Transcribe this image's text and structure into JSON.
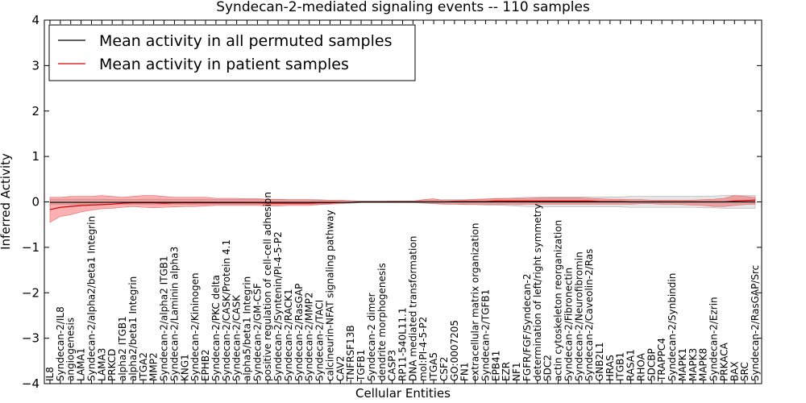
{
  "chart_data": {
    "type": "line",
    "title": "Syndecan-2-mediated signaling events -- 110 samples",
    "xlabel": "Cellular Entities",
    "ylabel": "Inferred Activity",
    "ylim": [
      -4,
      4
    ],
    "yticks": [
      -4,
      -3,
      -2,
      -1,
      0,
      1,
      2,
      3,
      4
    ],
    "legend_position": "top-left",
    "categories": [
      "IL8",
      "Syndecan-2/IL8",
      "angiogenesis",
      "LAMA1",
      "Syndecan-2/alpha2/beta1 Integrin",
      "LAMA3",
      "PRKCD",
      "alpha2 ITGB1",
      "alpha2/beta1 Integrin",
      "ITGA2",
      "MMP2",
      "Syndecan-2/alpha2 ITGB1",
      "Syndecan-2/Laminin alpha3",
      "KNG1",
      "Syndecan-2/Kininogen",
      "EPHB2",
      "Syndecan-2/PKC delta",
      "Syndecan-2/CASK/Protein 4.1",
      "Syndecan-2/CASK",
      "alpha5/beta1 Integrin",
      "Syndecan-2/GM-CSF",
      "positive regulation of cell-cell adhesion",
      "Syndecan-2/Syntenin/PI-4-5-P2",
      "Syndecan-2/RACK1",
      "Syndecan-2/RasGAP",
      "Syndecan-2/MMP2",
      "Syndecan-2/TACI",
      "calcineurin-NFAT signaling pathway",
      "CAV2",
      "TNFRSF13B",
      "TGFB1",
      "Syndecan-2 dimer",
      "dendrite morphogenesis",
      "CASP3",
      "RP11-540L11.1",
      "DNA mediated transformation",
      "mol:PI-4-5-P2",
      "ITGA5",
      "CSF2",
      "GO:0007205",
      "FN1",
      "extracellular matrix organization",
      "Syndecan-2/TGFB1",
      "EPB41",
      "EZR",
      "NF1",
      "FGFR/FGF/Syndecan-2",
      "determination of left/right symmetry",
      "SDC2",
      "actin cytoskeleton reorganization",
      "Syndecan-2/Fibronectin",
      "Syndecan-2/Neurofibromin",
      "Syndecan-2/Caveolin-2/Ras",
      "GNB2L1",
      "HRAS",
      "ITGB1",
      "RASA1",
      "RHOA",
      "SDCBP",
      "TRAPPC4",
      "Syndecan-2/Synbindin",
      "MAPK1",
      "MAPK3",
      "MAPK8",
      "Syndecan-2/Ezrin",
      "PRKACA",
      "BAX",
      "SRC",
      "Syndecan-2/RasGAP/Src"
    ],
    "series": [
      {
        "name": "Mean activity in all permuted samples",
        "color": "#000000",
        "values": [
          -0.01,
          -0.01,
          -0.01,
          -0.01,
          -0.01,
          -0.01,
          -0.01,
          -0.01,
          -0.01,
          -0.01,
          -0.01,
          -0.01,
          -0.01,
          -0.01,
          -0.01,
          -0.01,
          -0.01,
          -0.01,
          -0.01,
          -0.01,
          -0.01,
          -0.01,
          -0.01,
          -0.01,
          -0.01,
          -0.01,
          -0.01,
          -0.01,
          -0.01,
          -0.01,
          0.0,
          0.0,
          0.0,
          0.0,
          0.0,
          0.0,
          0.0,
          0.0,
          0.0,
          0.0,
          0.0,
          0.0,
          0.0,
          0.0,
          0.0,
          0.0,
          0.0,
          0.0,
          0.0,
          0.0,
          0.0,
          0.0,
          0.0,
          0.0,
          0.0,
          0.0,
          0.0,
          0.0,
          0.0,
          0.0,
          0.0,
          0.0,
          0.0,
          0.0,
          0.0,
          0.0,
          0.0,
          0.0,
          0.0
        ],
        "band_low": [
          -0.06,
          -0.06,
          -0.06,
          -0.06,
          -0.06,
          -0.06,
          -0.05,
          -0.05,
          -0.05,
          -0.06,
          -0.06,
          -0.06,
          -0.05,
          -0.05,
          -0.05,
          -0.05,
          -0.05,
          -0.05,
          -0.05,
          -0.05,
          -0.05,
          -0.05,
          -0.05,
          -0.05,
          -0.05,
          -0.05,
          -0.05,
          -0.04,
          -0.04,
          -0.03,
          -0.02,
          -0.02,
          -0.02,
          -0.02,
          -0.02,
          -0.02,
          -0.03,
          -0.04,
          -0.05,
          -0.05,
          -0.05,
          -0.06,
          -0.07,
          -0.07,
          -0.08,
          -0.09,
          -0.1,
          -0.1,
          -0.11,
          -0.11,
          -0.11,
          -0.11,
          -0.11,
          -0.11,
          -0.11,
          -0.11,
          -0.12,
          -0.12,
          -0.12,
          -0.12,
          -0.12,
          -0.12,
          -0.12,
          -0.13,
          -0.13,
          -0.14,
          -0.14,
          -0.14,
          -0.14
        ],
        "band_high": [
          0.06,
          0.06,
          0.06,
          0.06,
          0.06,
          0.06,
          0.05,
          0.05,
          0.05,
          0.06,
          0.06,
          0.06,
          0.05,
          0.05,
          0.05,
          0.05,
          0.05,
          0.05,
          0.05,
          0.05,
          0.05,
          0.05,
          0.05,
          0.05,
          0.05,
          0.05,
          0.05,
          0.04,
          0.04,
          0.03,
          0.02,
          0.02,
          0.02,
          0.02,
          0.02,
          0.02,
          0.03,
          0.04,
          0.05,
          0.05,
          0.05,
          0.06,
          0.07,
          0.07,
          0.08,
          0.09,
          0.1,
          0.1,
          0.11,
          0.11,
          0.11,
          0.11,
          0.11,
          0.11,
          0.11,
          0.11,
          0.12,
          0.12,
          0.12,
          0.12,
          0.12,
          0.12,
          0.12,
          0.13,
          0.13,
          0.14,
          0.14,
          0.14,
          0.14
        ]
      },
      {
        "name": "Mean activity in patient samples",
        "color": "#dd0000",
        "values": [
          -0.17,
          -0.12,
          -0.1,
          -0.08,
          -0.07,
          -0.06,
          -0.05,
          -0.03,
          -0.02,
          -0.02,
          -0.02,
          -0.03,
          -0.02,
          -0.02,
          -0.02,
          -0.02,
          -0.02,
          -0.02,
          -0.02,
          -0.02,
          -0.02,
          -0.03,
          -0.03,
          -0.03,
          -0.03,
          -0.03,
          -0.02,
          -0.02,
          -0.01,
          -0.01,
          0.0,
          0.0,
          0.0,
          0.0,
          0.0,
          0.0,
          0.0,
          0.0,
          0.0,
          0.01,
          0.01,
          0.01,
          0.01,
          0.02,
          0.02,
          0.02,
          0.02,
          0.02,
          0.02,
          0.02,
          0.02,
          0.02,
          0.02,
          0.01,
          0.01,
          0.01,
          0.0,
          0.0,
          0.0,
          0.0,
          0.0,
          0.0,
          0.0,
          0.0,
          0.0,
          0.0,
          0.02,
          0.03,
          0.04
        ],
        "band_low": [
          -0.45,
          -0.32,
          -0.28,
          -0.22,
          -0.18,
          -0.15,
          -0.14,
          -0.12,
          -0.1,
          -0.12,
          -0.13,
          -0.12,
          -0.11,
          -0.1,
          -0.1,
          -0.09,
          -0.08,
          -0.08,
          -0.08,
          -0.08,
          -0.08,
          -0.09,
          -0.09,
          -0.08,
          -0.08,
          -0.08,
          -0.06,
          -0.05,
          -0.04,
          -0.02,
          -0.01,
          -0.01,
          -0.01,
          -0.01,
          -0.01,
          -0.01,
          -0.02,
          -0.04,
          -0.05,
          -0.05,
          -0.06,
          -0.06,
          -0.06,
          -0.06,
          -0.06,
          -0.06,
          -0.05,
          -0.05,
          -0.05,
          -0.05,
          -0.05,
          -0.05,
          -0.05,
          -0.05,
          -0.05,
          -0.05,
          -0.05,
          -0.04,
          -0.04,
          -0.05,
          -0.05,
          -0.06,
          -0.07,
          -0.08,
          -0.1,
          -0.1,
          -0.08,
          -0.06,
          -0.05
        ],
        "band_high": [
          0.1,
          0.1,
          0.12,
          0.12,
          0.12,
          0.14,
          0.12,
          0.1,
          0.12,
          0.14,
          0.14,
          0.12,
          0.1,
          0.1,
          0.1,
          0.1,
          0.08,
          0.08,
          0.08,
          0.07,
          0.07,
          0.06,
          0.06,
          0.05,
          0.05,
          0.05,
          0.04,
          0.04,
          0.04,
          0.02,
          0.01,
          0.01,
          0.01,
          0.02,
          0.02,
          0.02,
          0.05,
          0.07,
          0.03,
          0.03,
          0.04,
          0.06,
          0.06,
          0.08,
          0.08,
          0.08,
          0.08,
          0.09,
          0.09,
          0.09,
          0.09,
          0.09,
          0.08,
          0.07,
          0.06,
          0.06,
          0.05,
          0.05,
          0.04,
          0.04,
          0.04,
          0.04,
          0.04,
          0.05,
          0.06,
          0.08,
          0.14,
          0.12,
          0.1
        ]
      }
    ]
  }
}
